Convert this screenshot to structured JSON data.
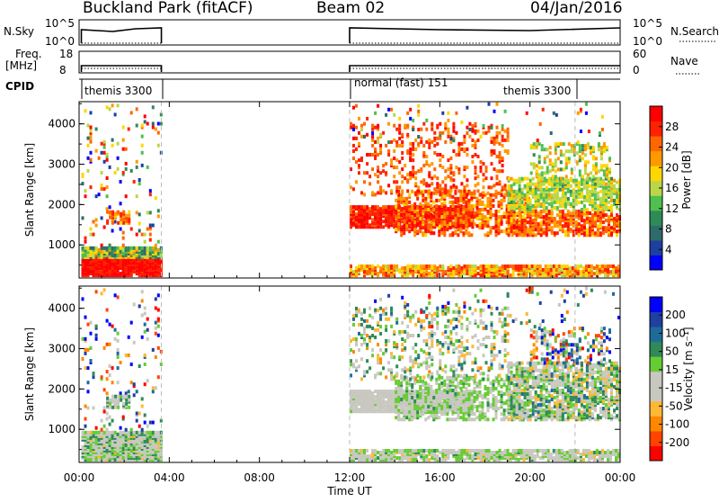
{
  "header": {
    "station": "Buckland Park (fitACF)",
    "beam": "Beam 02",
    "date": "04/Jan/2016"
  },
  "strips": {
    "nsky_label": "N.Sky",
    "nsky_ticks": [
      "10^5",
      "10^0"
    ],
    "nsearch_label": "N.Search",
    "nsearch_ticks": [
      "10^5",
      "10^0"
    ],
    "freq_label_1": "Freq.",
    "freq_label_2": "[MHz]",
    "freq_ticks": [
      "18",
      "8"
    ],
    "nave_label": "Nave",
    "nave_ticks": [
      "60",
      "0"
    ],
    "cpid_label": "CPID"
  },
  "cpid_segments": [
    {
      "start_hour": 0.0,
      "end_hour": 3.7,
      "labels": [
        "themis 3300"
      ]
    },
    {
      "start_hour": 12.0,
      "end_hour": 24.0,
      "labels": [
        "normal (fast) 151",
        "themis 3300"
      ]
    }
  ],
  "chart_data": [
    {
      "type": "heatmap",
      "name": "power",
      "xlabel": "",
      "ylabel": "Slant Range [km]",
      "x_range_hours": [
        0,
        24
      ],
      "ylim": [
        180,
        4550
      ],
      "yticks": [
        "1000",
        "2000",
        "3000",
        "4000"
      ],
      "colorbar_label": "Power [dB]",
      "colorbar_ticks": [
        "28",
        "24",
        "20",
        "16",
        "12",
        "8",
        "4"
      ],
      "colors": [
        "#0000ff",
        "#1e3fa0",
        "#2f6b6b",
        "#2e8b57",
        "#4fbf4f",
        "#b8d84a",
        "#ffd700",
        "#ff9900",
        "#ff6600",
        "#ff2200",
        "#ff0000"
      ]
    },
    {
      "type": "heatmap",
      "name": "velocity",
      "xlabel": "Time UT",
      "ylabel": "Slant Range [km]",
      "x_range_hours": [
        0,
        24
      ],
      "ylim": [
        180,
        4550
      ],
      "yticks": [
        "1000",
        "2000",
        "3000",
        "4000"
      ],
      "xticks": [
        "00:00",
        "04:00",
        "08:00",
        "12:00",
        "16:00",
        "20:00",
        "00:00"
      ],
      "colorbar_label": "Velocity [m s⁻¹]",
      "colorbar_ticks": [
        "200",
        "100",
        "50",
        "15",
        "-15",
        "-50",
        "-100",
        "-200"
      ],
      "colors": [
        "#ff0000",
        "#ff4400",
        "#ff8800",
        "#ffb833",
        "#c8c8c0",
        "#c8c8c0",
        "#66cc33",
        "#2e8b57",
        "#1e6b9b",
        "#2040a0",
        "#0000ff"
      ]
    }
  ]
}
